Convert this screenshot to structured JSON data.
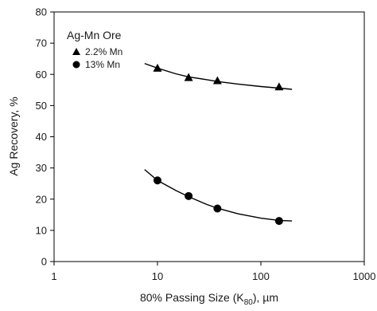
{
  "chart_data": {
    "type": "scatter",
    "title": "",
    "xlabel_parts": {
      "prefix": "80% Passing Size (K",
      "subscript": "80",
      "suffix": "), µm"
    },
    "ylabel": "Ag Recovery, %",
    "x_scale": "log",
    "xlim": [
      1,
      1000
    ],
    "ylim": [
      0,
      80
    ],
    "x_ticks": [
      1,
      10,
      100,
      1000
    ],
    "x_tick_labels": [
      "1",
      "10",
      "100",
      "1000"
    ],
    "y_ticks": [
      0,
      10,
      20,
      30,
      40,
      50,
      60,
      70,
      80
    ],
    "y_tick_labels": [
      "0",
      "10",
      "20",
      "30",
      "40",
      "50",
      "60",
      "70",
      "80"
    ],
    "grid": false,
    "legend_title": "Ag-Mn Ore",
    "legend_position": "top-left",
    "series": [
      {
        "name": "2.2% Mn",
        "marker": "triangle",
        "color": "#000000",
        "x": [
          10,
          20,
          38,
          150
        ],
        "y": [
          62,
          59,
          58,
          56
        ],
        "trend_x": [
          7.5,
          10,
          15,
          20,
          30,
          38,
          60,
          100,
          150,
          200
        ],
        "trend_y": [
          63.5,
          62,
          60.2,
          59.2,
          58.3,
          57.7,
          56.9,
          56.1,
          55.6,
          55.2
        ]
      },
      {
        "name": "13% Mn",
        "marker": "circle",
        "color": "#000000",
        "x": [
          10,
          20,
          38,
          150
        ],
        "y": [
          26,
          21,
          17,
          13
        ],
        "trend_x": [
          7.5,
          10,
          15,
          20,
          30,
          38,
          60,
          100,
          150,
          200
        ],
        "trend_y": [
          29.5,
          26,
          22.8,
          20.8,
          18.3,
          17.1,
          15.3,
          13.9,
          13.2,
          13
        ]
      }
    ]
  }
}
